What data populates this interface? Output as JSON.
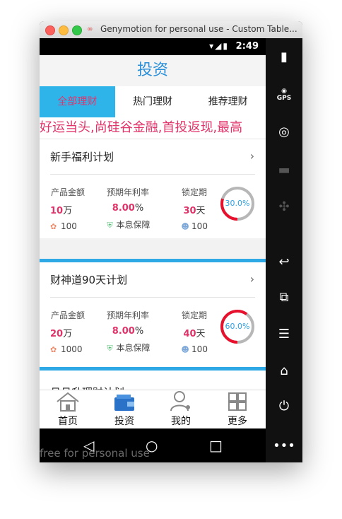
{
  "window": {
    "title": "Genymotion for personal use - Custom Table..."
  },
  "status_bar": {
    "time": "2:49"
  },
  "app": {
    "header_title": "投资",
    "tabs": [
      {
        "label": "全部理财",
        "active": true
      },
      {
        "label": "热门理财",
        "active": false
      },
      {
        "label": "推荐理财",
        "active": false
      }
    ],
    "marquee": "好运当头,尚硅谷金融,首投返现,最高",
    "labels": {
      "amount": "产品金额",
      "rate": "预期年利率",
      "lock": "锁定期",
      "guarantee": "本息保障"
    },
    "products": [
      {
        "name": "新手福利计划",
        "amount_value": "10",
        "amount_unit": "万",
        "rate_value": "8.00",
        "rate_unit": "%",
        "lock_value": "30",
        "lock_unit": "天",
        "min_invest": "100",
        "investors": "100",
        "progress_label": "30.0%",
        "progress": 0.3
      },
      {
        "name": "财神道90天计划",
        "amount_value": "20",
        "amount_unit": "万",
        "rate_value": "8.00",
        "rate_unit": "%",
        "lock_value": "40",
        "lock_unit": "天",
        "min_invest": "1000",
        "investors": "100",
        "progress_label": "60.0%",
        "progress": 0.6
      },
      {
        "name": "月月升理财计划"
      }
    ],
    "bottom_nav": [
      {
        "label": "首页",
        "icon": "home-icon"
      },
      {
        "label": "投资",
        "icon": "wallet-icon"
      },
      {
        "label": "我的",
        "icon": "user-icon"
      },
      {
        "label": "更多",
        "icon": "grid-icon"
      }
    ]
  },
  "watermark": "free for personal use",
  "colors": {
    "accent": "#2fb4ea",
    "highlight": "#e0336a",
    "progress_red": "#e8112d",
    "progress_track": "#b7b7b7"
  }
}
